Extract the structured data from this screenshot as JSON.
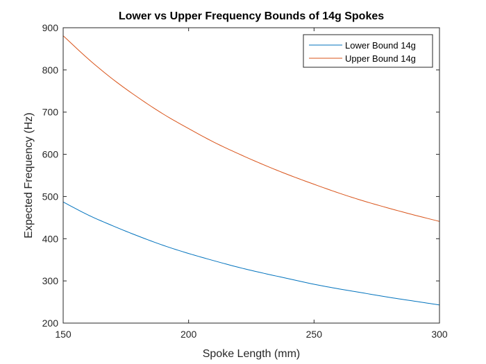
{
  "chart_data": {
    "type": "line",
    "title": "Lower vs Upper Frequency Bounds of 14g Spokes",
    "xlabel": "Spoke Length (mm)",
    "ylabel": "Expected Frequency (Hz)",
    "xlim": [
      150,
      300
    ],
    "ylim": [
      200,
      900
    ],
    "xticks": [
      150,
      200,
      250,
      300
    ],
    "yticks": [
      200,
      300,
      400,
      500,
      600,
      700,
      800,
      900
    ],
    "grid": false,
    "legend_position": "top-right",
    "series": [
      {
        "name": "Lower Bound 14g",
        "color": "#0072BD",
        "x": [
          150,
          160,
          170,
          180,
          190,
          200,
          210,
          220,
          230,
          240,
          250,
          260,
          270,
          280,
          290,
          300
        ],
        "y": [
          487,
          456,
          430,
          406,
          384,
          365,
          348,
          332,
          318,
          305,
          292,
          281,
          271,
          261,
          252,
          243
        ]
      },
      {
        "name": "Upper Bound 14g",
        "color": "#D95319",
        "x": [
          150,
          160,
          170,
          180,
          190,
          200,
          210,
          220,
          230,
          240,
          250,
          260,
          270,
          280,
          290,
          300
        ],
        "y": [
          881,
          826,
          777,
          734,
          695,
          661,
          629,
          601,
          575,
          551,
          529,
          508,
          489,
          472,
          456,
          441
        ]
      }
    ]
  }
}
